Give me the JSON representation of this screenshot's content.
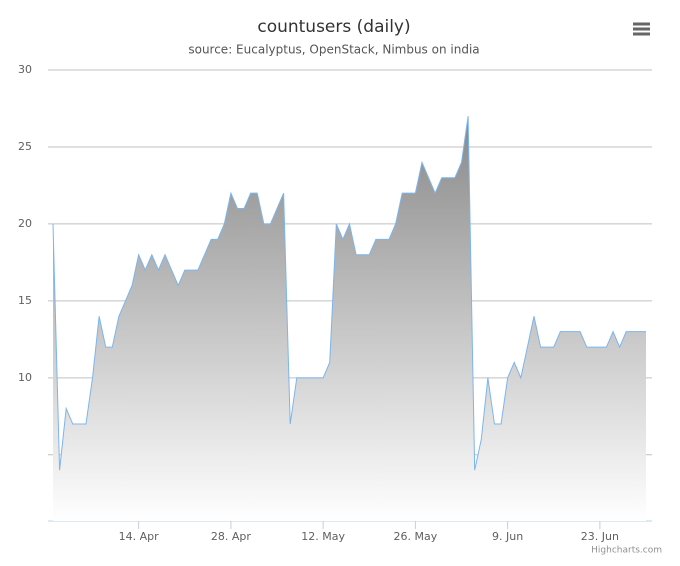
{
  "chart_data": {
    "type": "area",
    "title": "countusers (daily)",
    "subtitle": "source: Eucalyptus, OpenStack, Nimbus on india",
    "credits": "Highcharts.com",
    "categories": [
      null,
      null,
      null,
      null,
      null,
      null,
      null,
      null,
      null,
      null,
      null,
      null,
      null,
      "14. Apr",
      null,
      null,
      null,
      null,
      null,
      null,
      null,
      null,
      null,
      null,
      null,
      null,
      null,
      "28. Apr",
      null,
      null,
      null,
      null,
      null,
      null,
      null,
      null,
      null,
      null,
      null,
      null,
      null,
      "12. May",
      null,
      null,
      null,
      null,
      null,
      null,
      null,
      null,
      null,
      null,
      null,
      null,
      null,
      "26. May",
      null,
      null,
      null,
      null,
      null,
      null,
      null,
      null,
      null,
      null,
      null,
      null,
      null,
      "9. Jun",
      null,
      null,
      null,
      null,
      null,
      null,
      null,
      null,
      null,
      null,
      null,
      null,
      null,
      "23. Jun",
      null,
      null,
      null,
      null,
      null,
      null,
      null
    ],
    "series": [
      {
        "name": "countusers",
        "color": "#7cb5ec",
        "values": [
          20,
          4,
          8,
          7,
          7,
          7,
          10,
          14,
          12,
          12,
          14,
          15,
          16,
          18,
          17,
          18,
          17,
          18,
          17,
          16,
          17,
          17,
          17,
          18,
          19,
          19,
          20,
          22,
          21,
          21,
          22,
          22,
          20,
          20,
          21,
          22,
          7,
          10,
          10,
          10,
          10,
          10,
          11,
          20,
          19,
          20,
          18,
          18,
          18,
          19,
          19,
          19,
          20,
          22,
          22,
          22,
          24,
          23,
          22,
          23,
          23,
          23,
          24,
          27,
          4,
          6,
          10,
          7,
          7,
          10,
          11,
          10,
          12,
          14,
          12,
          12,
          12,
          13,
          13,
          13,
          13,
          12,
          12,
          12,
          12,
          13,
          12,
          13,
          13,
          13,
          13
        ]
      }
    ],
    "ylim": [
      0.7,
      30
    ],
    "yticks": [
      {
        "value": 5,
        "label": null
      },
      10,
      15,
      20,
      25,
      30
    ],
    "grid": true
  }
}
